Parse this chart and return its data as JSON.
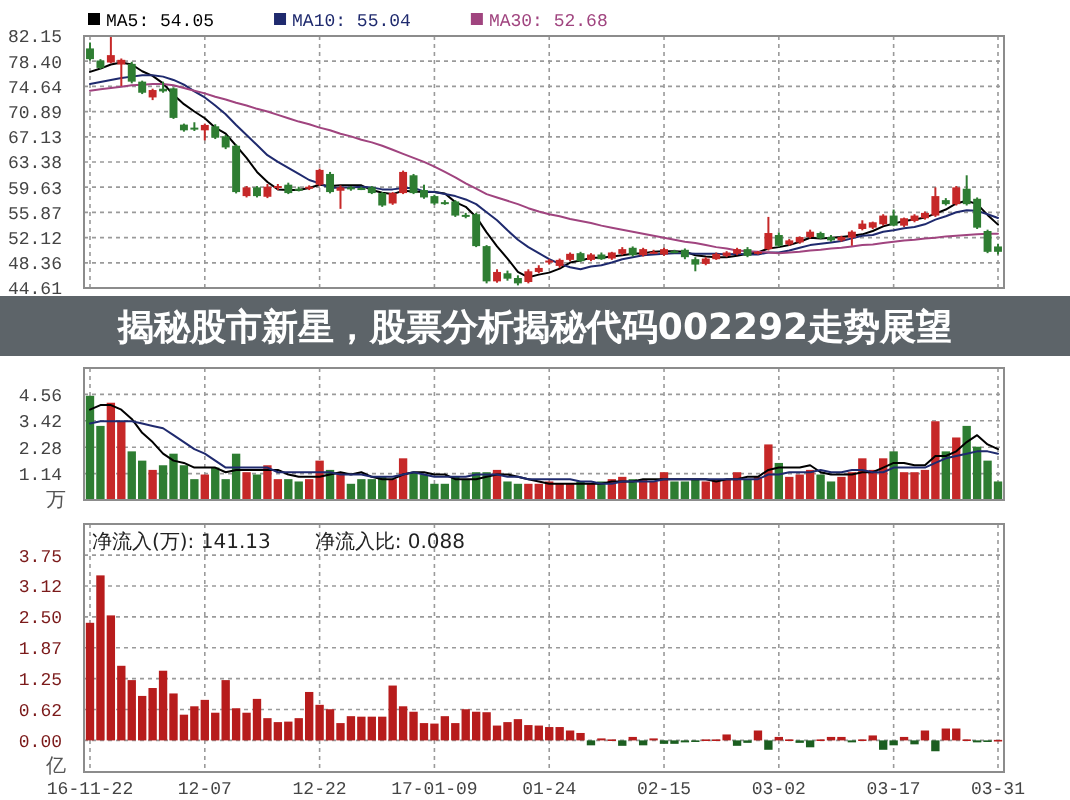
{
  "chart_data": [
    {
      "type": "candlestick",
      "title": "揭秘股市新星，股票分析揭秘代码002292走势展望",
      "categories": [
        null,
        null,
        null,
        null,
        null,
        null,
        null,
        null,
        null,
        null,
        null,
        null,
        null,
        null,
        null,
        null,
        null,
        null,
        null,
        null,
        null,
        null,
        null,
        null,
        null,
        null,
        null,
        null,
        null,
        null,
        null,
        null,
        null,
        null,
        null,
        null,
        null,
        null,
        null,
        null,
        null,
        null,
        null,
        null,
        null,
        null,
        null,
        null,
        null,
        null,
        null,
        null,
        null,
        null,
        null,
        null,
        null,
        null,
        null,
        null,
        null,
        null,
        null,
        null,
        null,
        null,
        null,
        null,
        null,
        null,
        null,
        null,
        null,
        null,
        null,
        null,
        null,
        null,
        null,
        null,
        null,
        null,
        null,
        null,
        null,
        null,
        null,
        null
      ],
      "series": [
        {
          "type": "line",
          "name": "MA5: 54.05",
          "color": "#000000",
          "values": [
            76.8,
            77.3,
            77.9,
            78.2,
            77.9,
            76.9,
            76.2,
            75.1,
            73.4,
            72.0,
            70.9,
            69.9,
            68.5,
            67.6,
            65.8,
            64.0,
            61.9,
            60.4,
            59.3,
            59.2,
            59.2,
            59.5,
            60.0,
            59.8,
            59.9,
            59.9,
            59.9,
            59.2,
            58.8,
            58.6,
            59.1,
            59.0,
            58.9,
            58.9,
            58.7,
            57.4,
            56.7,
            55.2,
            52.9,
            50.8,
            49.0,
            47.0,
            46.2,
            46.6,
            46.9,
            47.5,
            48.4,
            48.7,
            49.1,
            49.1,
            49.3,
            49.5,
            49.7,
            49.8,
            50.0,
            50.1,
            50.1,
            50.0,
            49.5,
            49.3,
            49.2,
            49.2,
            49.4,
            49.7,
            49.9,
            50.5,
            50.7,
            51.0,
            51.5,
            52.1,
            52.0,
            52.1,
            52.2,
            52.4,
            52.6,
            53.1,
            53.8,
            54.2,
            54.6,
            54.8,
            55.1,
            55.7,
            56.3,
            57.2,
            57.6,
            57.1,
            55.5,
            54.05
          ]
        },
        {
          "type": "line",
          "name": "MA10: 55.04",
          "color": "#1f2a6e",
          "values": [
            75.0,
            75.3,
            75.6,
            75.9,
            76.1,
            76.3,
            76.3,
            76.1,
            75.6,
            74.9,
            73.9,
            73.0,
            71.8,
            70.5,
            68.9,
            67.4,
            65.9,
            64.4,
            63.4,
            62.5,
            61.6,
            60.7,
            60.2,
            59.5,
            59.6,
            59.6,
            59.7,
            59.6,
            59.3,
            59.3,
            59.5,
            59.5,
            59.0,
            58.9,
            58.6,
            58.3,
            57.8,
            57.1,
            55.9,
            54.7,
            53.2,
            51.8,
            50.7,
            49.8,
            48.9,
            48.2,
            47.7,
            47.4,
            47.8,
            48.0,
            48.4,
            48.9,
            49.2,
            49.5,
            49.6,
            49.7,
            49.8,
            49.8,
            49.7,
            49.7,
            49.7,
            49.6,
            49.7,
            49.6,
            49.6,
            49.9,
            49.9,
            50.2,
            50.6,
            51.0,
            51.2,
            51.4,
            51.6,
            52.0,
            52.4,
            52.5,
            53.0,
            53.2,
            53.5,
            53.7,
            54.1,
            54.8,
            55.3,
            55.9,
            56.2,
            56.1,
            55.6,
            55.04
          ]
        },
        {
          "type": "line",
          "name": "MA30: 52.68",
          "color": "#a0447f",
          "values": [
            74.0,
            74.2,
            74.4,
            74.6,
            74.8,
            74.9,
            75.0,
            75.0,
            74.8,
            74.4,
            74.0,
            73.6,
            73.1,
            72.7,
            72.2,
            71.8,
            71.3,
            70.9,
            70.4,
            69.9,
            69.4,
            69.0,
            68.5,
            68.1,
            67.6,
            67.2,
            66.7,
            66.3,
            65.8,
            65.2,
            64.6,
            64.0,
            63.4,
            62.7,
            61.9,
            61.1,
            60.2,
            59.4,
            58.6,
            58.1,
            57.6,
            57.1,
            56.5,
            56.0,
            55.6,
            55.3,
            54.9,
            54.6,
            54.3,
            53.9,
            53.6,
            53.3,
            53.0,
            52.7,
            52.4,
            52.1,
            51.8,
            51.5,
            51.3,
            51.0,
            50.7,
            50.5,
            50.2,
            50.1,
            50.0,
            49.9,
            49.8,
            49.9,
            50.0,
            50.2,
            50.3,
            50.5,
            50.6,
            50.8,
            51.0,
            51.1,
            51.3,
            51.5,
            51.7,
            51.8,
            52.0,
            52.1,
            52.3,
            52.4,
            52.5,
            52.6,
            52.7,
            52.68
          ]
        },
        {
          "type": "candlestick",
          "ohlc": [
            [
              80.3,
              81.2,
              78.5,
              78.7
            ],
            [
              78.5,
              78.7,
              77.2,
              77.4
            ],
            [
              78.2,
              82.0,
              78.1,
              79.3
            ],
            [
              77.9,
              78.8,
              74.7,
              78.6
            ],
            [
              78.0,
              78.3,
              75.1,
              75.35
            ],
            [
              75.35,
              75.5,
              73.5,
              73.7
            ],
            [
              73.0,
              74.3,
              72.6,
              74.1
            ],
            [
              74.3,
              75.35,
              73.7,
              73.9
            ],
            [
              74.35,
              74.5,
              69.8,
              69.95
            ],
            [
              68.95,
              69.1,
              67.9,
              68.1
            ],
            [
              68.5,
              69.3,
              68.0,
              68.4
            ],
            [
              68.1,
              69.1,
              66.6,
              68.9
            ],
            [
              68.7,
              69.0,
              66.8,
              67.0
            ],
            [
              67.2,
              67.4,
              65.3,
              65.55
            ],
            [
              65.8,
              66.0,
              58.7,
              58.9
            ],
            [
              58.3,
              59.8,
              58.1,
              59.6
            ],
            [
              59.6,
              59.8,
              58.1,
              58.3
            ],
            [
              58.2,
              60.1,
              58.0,
              59.7
            ],
            [
              59.5,
              60.1,
              59.2,
              59.8
            ],
            [
              60.0,
              60.3,
              58.6,
              58.75
            ],
            [
              59.4,
              59.7,
              59.0,
              59.3
            ],
            [
              59.4,
              59.9,
              59.2,
              59.7
            ],
            [
              60.0,
              62.4,
              59.8,
              62.2
            ],
            [
              61.6,
              61.9,
              58.7,
              58.9
            ],
            [
              59.1,
              59.9,
              56.4,
              59.6
            ],
            [
              59.6,
              59.8,
              59.1,
              59.3
            ],
            [
              59.5,
              59.7,
              59.2,
              59.4
            ],
            [
              59.6,
              59.8,
              58.6,
              58.75
            ],
            [
              58.75,
              58.9,
              56.7,
              56.9
            ],
            [
              57.2,
              58.9,
              57.0,
              58.75
            ],
            [
              58.75,
              62.1,
              58.6,
              61.9
            ],
            [
              61.4,
              61.6,
              58.6,
              58.75
            ],
            [
              59.2,
              60.0,
              57.9,
              58.1
            ],
            [
              58.3,
              58.5,
              57.0,
              57.2
            ],
            [
              57.4,
              57.7,
              57.0,
              57.3
            ],
            [
              57.5,
              57.7,
              55.2,
              55.4
            ],
            [
              55.5,
              55.8,
              55.0,
              55.3
            ],
            [
              55.6,
              55.8,
              50.7,
              50.85
            ],
            [
              50.85,
              51.0,
              45.3,
              45.6
            ],
            [
              45.6,
              47.4,
              45.4,
              47.0
            ],
            [
              46.8,
              47.2,
              45.7,
              46.0
            ],
            [
              46.1,
              46.5,
              45.0,
              45.3
            ],
            [
              45.5,
              47.4,
              45.3,
              47.1
            ],
            [
              47.0,
              48.0,
              46.8,
              47.6
            ],
            [
              48.4,
              48.9,
              48.1,
              48.7
            ],
            [
              47.9,
              49.0,
              47.6,
              48.8
            ],
            [
              48.8,
              49.9,
              48.6,
              49.7
            ],
            [
              49.8,
              50.0,
              48.5,
              48.6
            ],
            [
              48.8,
              49.8,
              48.6,
              49.6
            ],
            [
              49.6,
              49.9,
              48.8,
              48.9
            ],
            [
              49.0,
              50.0,
              48.8,
              49.9
            ],
            [
              49.7,
              50.7,
              49.5,
              50.4
            ],
            [
              50.6,
              50.8,
              49.3,
              49.5
            ],
            [
              49.5,
              50.6,
              49.3,
              50.4
            ],
            [
              49.9,
              50.3,
              49.7,
              50.0
            ],
            [
              49.6,
              50.6,
              49.4,
              50.4
            ],
            [
              50.1,
              50.3,
              49.8,
              50.0
            ],
            [
              50.3,
              50.5,
              48.9,
              49.2
            ],
            [
              48.9,
              49.2,
              47.1,
              48.1
            ],
            [
              48.2,
              49.2,
              48.0,
              49.0
            ],
            [
              48.9,
              49.9,
              48.8,
              49.7
            ],
            [
              49.4,
              50.1,
              49.2,
              49.9
            ],
            [
              49.7,
              50.6,
              49.5,
              50.4
            ],
            [
              50.4,
              50.7,
              49.2,
              49.4
            ],
            [
              49.9,
              50.1,
              49.6,
              50.0
            ],
            [
              50.4,
              55.2,
              50.2,
              52.8
            ],
            [
              52.5,
              52.9,
              50.7,
              50.9
            ],
            [
              51.1,
              51.9,
              50.9,
              51.7
            ],
            [
              51.4,
              52.3,
              51.2,
              52.2
            ],
            [
              52.2,
              53.3,
              52.0,
              53.0
            ],
            [
              52.8,
              53.0,
              51.9,
              52.0
            ],
            [
              52.2,
              52.5,
              51.5,
              51.7
            ],
            [
              51.7,
              52.4,
              51.5,
              52.2
            ],
            [
              52.1,
              53.2,
              50.9,
              53.0
            ],
            [
              53.4,
              54.7,
              53.2,
              54.2
            ],
            [
              53.6,
              54.5,
              53.4,
              54.4
            ],
            [
              54.1,
              55.6,
              53.9,
              55.4
            ],
            [
              55.4,
              56.3,
              53.8,
              53.9
            ],
            [
              53.9,
              55.1,
              53.7,
              55.0
            ],
            [
              54.6,
              55.6,
              54.4,
              55.4
            ],
            [
              55.0,
              56.0,
              54.8,
              55.8
            ],
            [
              55.4,
              59.6,
              55.2,
              58.3
            ],
            [
              57.7,
              58.0,
              56.9,
              57.1
            ],
            [
              57.1,
              59.8,
              56.9,
              59.6
            ],
            [
              59.4,
              61.4,
              56.9,
              57.1
            ],
            [
              57.9,
              58.1,
              53.4,
              53.6
            ],
            [
              53.1,
              53.3,
              49.8,
              50.0
            ],
            [
              50.8,
              51.2,
              49.6,
              50.0
            ]
          ],
          "colors": [
            "#2e7d32",
            "#2e7d32",
            "#c62828",
            "#c62828",
            "#2e7d32",
            "#2e7d32",
            "#c62828",
            "#2e7d32",
            "#2e7d32",
            "#2e7d32",
            "#2e7d32",
            "#c62828",
            "#2e7d32",
            "#2e7d32",
            "#2e7d32",
            "#c62828",
            "#2e7d32",
            "#c62828",
            "#c62828",
            "#2e7d32",
            "#2e7d32",
            "#c62828",
            "#c62828",
            "#2e7d32",
            "#c62828",
            "#2e7d32",
            "#2e7d32",
            "#2e7d32",
            "#2e7d32",
            "#c62828",
            "#c62828",
            "#2e7d32",
            "#2e7d32",
            "#2e7d32",
            "#2e7d32",
            "#2e7d32",
            "#2e7d32",
            "#2e7d32",
            "#2e7d32",
            "#c62828",
            "#2e7d32",
            "#2e7d32",
            "#c62828",
            "#c62828",
            "#c62828",
            "#c62828",
            "#c62828",
            "#2e7d32",
            "#c62828",
            "#2e7d32",
            "#c62828",
            "#c62828",
            "#2e7d32",
            "#c62828",
            "#c62828",
            "#c62828",
            "#2e7d32",
            "#2e7d32",
            "#2e7d32",
            "#c62828",
            "#c62828",
            "#c62828",
            "#c62828",
            "#2e7d32",
            "#c62828",
            "#c62828",
            "#2e7d32",
            "#c62828",
            "#c62828",
            "#c62828",
            "#2e7d32",
            "#2e7d32",
            "#c62828",
            "#c62828",
            "#c62828",
            "#c62828",
            "#c62828",
            "#2e7d32",
            "#c62828",
            "#c62828",
            "#c62828",
            "#c62828",
            "#2e7d32",
            "#c62828",
            "#2e7d32",
            "#2e7d32",
            "#2e7d32",
            "#2e7d32"
          ]
        }
      ],
      "ylim": [
        44.61,
        82.15
      ],
      "yticks": [
        44.61,
        48.36,
        52.12,
        55.87,
        59.63,
        63.38,
        67.13,
        70.89,
        74.64,
        {
          "value": 78.4,
          "label": "78.40"
        },
        82.15
      ],
      "grid": true,
      "legend": "top",
      "tick_labels": "y"
    },
    {
      "type": "bar",
      "ylabel": "万",
      "categories": [
        null,
        null,
        null,
        null,
        null,
        null,
        null,
        null,
        null,
        null,
        null,
        null,
        null,
        null,
        null,
        null,
        null,
        null,
        null,
        null,
        null,
        null,
        null,
        null,
        null,
        null,
        null,
        null,
        null,
        null,
        null,
        null,
        null,
        null,
        null,
        null,
        null,
        null,
        null,
        null,
        null,
        null,
        null,
        null,
        null,
        null,
        null,
        null,
        null,
        null,
        null,
        null,
        null,
        null,
        null,
        null,
        null,
        null,
        null,
        null,
        null,
        null,
        null,
        null,
        null,
        null,
        null,
        null,
        null,
        null,
        null,
        null,
        null,
        null,
        null,
        null,
        null,
        null,
        null,
        null,
        null,
        null,
        null,
        null,
        null,
        null,
        null,
        null
      ],
      "series": [
        {
          "type": "bar",
          "values": [
            4.5,
            3.2,
            4.2,
            3.4,
            2.1,
            1.7,
            1.3,
            1.5,
            2.0,
            1.5,
            0.9,
            1.1,
            1.4,
            0.9,
            2.0,
            1.2,
            1.1,
            1.5,
            0.9,
            0.9,
            0.8,
            0.9,
            1.7,
            1.3,
            1.2,
            0.7,
            0.9,
            0.9,
            1.0,
            0.9,
            1.8,
            1.2,
            1.1,
            0.7,
            0.7,
            1.0,
            0.9,
            1.2,
            1.2,
            1.3,
            0.8,
            0.7,
            0.7,
            0.7,
            0.8,
            0.7,
            0.7,
            0.8,
            0.7,
            0.8,
            0.9,
            1.0,
            0.9,
            0.9,
            0.8,
            1.2,
            0.8,
            0.8,
            0.9,
            0.8,
            0.9,
            0.9,
            1.2,
            0.9,
            1.0,
            2.4,
            1.6,
            1.0,
            1.1,
            1.3,
            1.1,
            0.8,
            1.0,
            1.2,
            1.8,
            1.3,
            1.8,
            2.1,
            1.2,
            1.2,
            1.3,
            3.4,
            2.1,
            2.7,
            3.2,
            2.3,
            1.7,
            0.8
          ],
          "colors": [
            "#2e7d32",
            "#2e7d32",
            "#c62828",
            "#c62828",
            "#2e7d32",
            "#2e7d32",
            "#c62828",
            "#2e7d32",
            "#2e7d32",
            "#2e7d32",
            "#2e7d32",
            "#c62828",
            "#2e7d32",
            "#2e7d32",
            "#2e7d32",
            "#c62828",
            "#2e7d32",
            "#c62828",
            "#c62828",
            "#2e7d32",
            "#2e7d32",
            "#c62828",
            "#c62828",
            "#2e7d32",
            "#c62828",
            "#2e7d32",
            "#2e7d32",
            "#2e7d32",
            "#2e7d32",
            "#c62828",
            "#c62828",
            "#2e7d32",
            "#2e7d32",
            "#2e7d32",
            "#2e7d32",
            "#2e7d32",
            "#2e7d32",
            "#2e7d32",
            "#2e7d32",
            "#c62828",
            "#2e7d32",
            "#2e7d32",
            "#c62828",
            "#c62828",
            "#c62828",
            "#c62828",
            "#c62828",
            "#2e7d32",
            "#c62828",
            "#2e7d32",
            "#c62828",
            "#c62828",
            "#2e7d32",
            "#c62828",
            "#c62828",
            "#c62828",
            "#2e7d32",
            "#2e7d32",
            "#2e7d32",
            "#c62828",
            "#c62828",
            "#c62828",
            "#c62828",
            "#2e7d32",
            "#c62828",
            "#c62828",
            "#2e7d32",
            "#c62828",
            "#c62828",
            "#c62828",
            "#2e7d32",
            "#2e7d32",
            "#c62828",
            "#c62828",
            "#c62828",
            "#c62828",
            "#c62828",
            "#2e7d32",
            "#c62828",
            "#c62828",
            "#c62828",
            "#c62828",
            "#2e7d32",
            "#c62828",
            "#2e7d32",
            "#2e7d32",
            "#2e7d32",
            "#2e7d32"
          ]
        },
        {
          "type": "line",
          "color": "#000000",
          "values": [
            3.9,
            4.1,
            4.1,
            3.9,
            3.5,
            2.9,
            2.5,
            2.0,
            1.7,
            1.6,
            1.4,
            1.4,
            1.4,
            1.2,
            1.3,
            1.3,
            1.3,
            1.3,
            1.3,
            1.1,
            1.0,
            1.0,
            1.0,
            1.1,
            1.2,
            1.1,
            1.2,
            1.0,
            0.9,
            0.9,
            1.1,
            1.2,
            1.2,
            1.1,
            1.1,
            0.9,
            0.9,
            0.9,
            1.0,
            1.1,
            1.1,
            1.0,
            0.9,
            0.8,
            0.7,
            0.7,
            0.7,
            0.7,
            0.7,
            0.7,
            0.8,
            0.8,
            0.8,
            0.9,
            0.9,
            0.9,
            0.9,
            0.9,
            0.9,
            0.9,
            0.8,
            0.9,
            0.9,
            1.0,
            1.0,
            1.3,
            1.4,
            1.4,
            1.4,
            1.5,
            1.2,
            1.1,
            1.1,
            1.1,
            1.2,
            1.2,
            1.4,
            1.6,
            1.6,
            1.5,
            1.5,
            1.9,
            1.9,
            2.1,
            2.5,
            2.8,
            2.4,
            2.2
          ]
        },
        {
          "type": "line",
          "color": "#1f2a6e",
          "values": [
            3.3,
            3.4,
            3.4,
            3.4,
            3.4,
            3.3,
            3.2,
            3.1,
            2.8,
            2.5,
            2.2,
            2.0,
            1.7,
            1.4,
            1.4,
            1.4,
            1.4,
            1.4,
            1.2,
            1.2,
            1.2,
            1.2,
            1.2,
            1.2,
            1.1,
            1.1,
            1.1,
            1.0,
            1.0,
            1.0,
            1.1,
            1.2,
            1.1,
            1.0,
            1.0,
            1.0,
            1.0,
            1.1,
            1.1,
            1.1,
            1.0,
            1.0,
            0.9,
            0.9,
            0.9,
            0.9,
            0.9,
            0.8,
            0.8,
            0.7,
            0.7,
            0.8,
            0.8,
            0.8,
            0.8,
            0.9,
            0.9,
            0.9,
            0.9,
            0.9,
            0.9,
            0.9,
            0.9,
            0.9,
            0.9,
            1.1,
            1.1,
            1.2,
            1.2,
            1.2,
            1.3,
            1.2,
            1.2,
            1.3,
            1.3,
            1.2,
            1.2,
            1.4,
            1.4,
            1.4,
            1.4,
            1.6,
            1.8,
            1.9,
            2.0,
            2.1,
            2.1,
            2.0
          ]
        }
      ],
      "ylim": [
        0,
        5.7
      ],
      "yticks": [
        1.14,
        2.28,
        3.42,
        4.56
      ],
      "grid": true,
      "tick_labels": "y"
    },
    {
      "type": "bar",
      "ylabel": "亿",
      "annotations": [
        "净流入(万): 141.13",
        "净流入比: 0.088"
      ],
      "categories": [
        "16-11-22",
        null,
        null,
        null,
        null,
        null,
        null,
        null,
        null,
        null,
        null,
        "12-07",
        null,
        null,
        null,
        null,
        null,
        null,
        null,
        null,
        null,
        null,
        "12-22",
        null,
        null,
        null,
        null,
        null,
        null,
        null,
        null,
        null,
        null,
        "17-01-09",
        null,
        null,
        null,
        null,
        null,
        null,
        null,
        null,
        null,
        null,
        "01-24",
        null,
        null,
        null,
        null,
        null,
        null,
        null,
        null,
        null,
        null,
        "02-15",
        null,
        null,
        null,
        null,
        null,
        null,
        null,
        null,
        null,
        null,
        "03-02",
        null,
        null,
        null,
        null,
        null,
        null,
        null,
        null,
        null,
        null,
        "03-17",
        null,
        null,
        null,
        null,
        null,
        null,
        null,
        null,
        null,
        "03-31"
      ],
      "values": [
        2.38,
        3.34,
        2.53,
        1.51,
        1.22,
        0.9,
        1.06,
        1.41,
        0.95,
        0.52,
        0.69,
        0.82,
        0.56,
        1.22,
        0.65,
        0.56,
        0.84,
        0.45,
        0.37,
        0.38,
        0.45,
        0.98,
        0.72,
        0.63,
        0.35,
        0.49,
        0.48,
        0.48,
        0.48,
        1.11,
        0.69,
        0.58,
        0.35,
        0.34,
        0.49,
        0.35,
        0.63,
        0.58,
        0.57,
        0.3,
        0.37,
        0.43,
        0.31,
        0.3,
        0.27,
        0.27,
        0.2,
        0.15,
        -0.1,
        0.04,
        0.02,
        -0.11,
        0.07,
        -0.1,
        0.04,
        -0.07,
        -0.07,
        -0.04,
        -0.03,
        0.02,
        0.02,
        0.12,
        -0.11,
        -0.05,
        0.2,
        -0.19,
        0.07,
        0.02,
        -0.05,
        -0.14,
        0.02,
        0.07,
        0.07,
        -0.04,
        0.02,
        0.1,
        -0.19,
        -0.1,
        0.07,
        -0.08,
        0.2,
        -0.22,
        0.24,
        0.24,
        0.02,
        -0.04,
        -0.03,
        0.01
      ],
      "colors": [
        "#b71c1c",
        "#b71c1c",
        "#b71c1c",
        "#b71c1c",
        "#b71c1c",
        "#b71c1c",
        "#b71c1c",
        "#b71c1c",
        "#b71c1c",
        "#b71c1c",
        "#b71c1c",
        "#b71c1c",
        "#b71c1c",
        "#b71c1c",
        "#b71c1c",
        "#b71c1c",
        "#b71c1c",
        "#b71c1c",
        "#b71c1c",
        "#b71c1c",
        "#b71c1c",
        "#b71c1c",
        "#b71c1c",
        "#b71c1c",
        "#b71c1c",
        "#b71c1c",
        "#b71c1c",
        "#b71c1c",
        "#b71c1c",
        "#b71c1c",
        "#b71c1c",
        "#b71c1c",
        "#b71c1c",
        "#b71c1c",
        "#b71c1c",
        "#b71c1c",
        "#b71c1c",
        "#b71c1c",
        "#b71c1c",
        "#b71c1c",
        "#b71c1c",
        "#b71c1c",
        "#b71c1c",
        "#b71c1c",
        "#b71c1c",
        "#b71c1c",
        "#b71c1c",
        "#b71c1c",
        "#1b5e20",
        "#b71c1c",
        "#b71c1c",
        "#1b5e20",
        "#b71c1c",
        "#1b5e20",
        "#b71c1c",
        "#1b5e20",
        "#1b5e20",
        "#1b5e20",
        "#1b5e20",
        "#b71c1c",
        "#b71c1c",
        "#b71c1c",
        "#1b5e20",
        "#1b5e20",
        "#b71c1c",
        "#1b5e20",
        "#b71c1c",
        "#b71c1c",
        "#1b5e20",
        "#1b5e20",
        "#b71c1c",
        "#b71c1c",
        "#b71c1c",
        "#1b5e20",
        "#b71c1c",
        "#b71c1c",
        "#1b5e20",
        "#1b5e20",
        "#b71c1c",
        "#1b5e20",
        "#b71c1c",
        "#1b5e20",
        "#b71c1c",
        "#b71c1c",
        "#b71c1c",
        "#1b5e20",
        "#1b5e20",
        "#b71c1c"
      ],
      "ylim": [
        -0.64,
        4.38
      ],
      "yticks": [
        {
          "value": 0,
          "label": "0.00"
        },
        {
          "value": 0.625,
          "label": "0.62"
        },
        1.25,
        {
          "value": 1.875,
          "label": "1.87"
        },
        {
          "value": 2.5,
          "label": "2.50"
        },
        {
          "value": 3.125,
          "label": "3.12"
        },
        3.75
      ],
      "grid": true
    }
  ]
}
